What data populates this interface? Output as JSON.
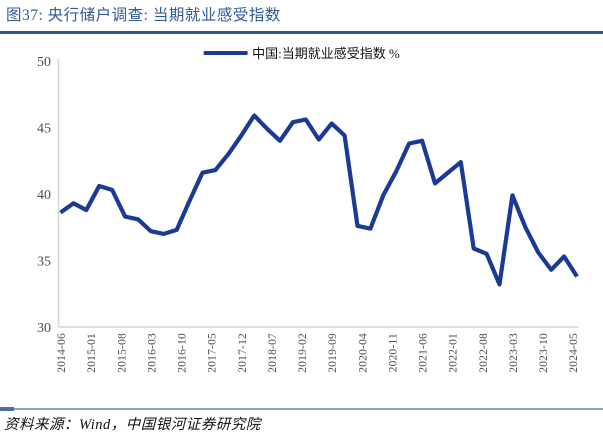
{
  "header": {
    "title": "图37:  央行储户调查:  当期就业感受指数",
    "accent_color": "#2E5A8F"
  },
  "legend": {
    "label": "中国:当期就业感受指数 %"
  },
  "footer": {
    "source": "资料来源：Wind，中国银河证券研究院"
  },
  "chart_data": {
    "type": "line",
    "title": "图37: 央行储户调查: 当期就业感受指数",
    "legend": "中国:当期就业感受指数 %",
    "line_color": "#1A3A94",
    "axis_color": "#D6D6D6",
    "tick_text_color": "#4D4D4D",
    "ylim": [
      30,
      50
    ],
    "y_ticks": [
      50,
      45,
      40,
      35,
      30
    ],
    "grid": "off",
    "legend_position": "top-center",
    "x_tick_labels": [
      "2014-06",
      "2015-01",
      "2015-08",
      "2016-03",
      "2016-10",
      "2017-05",
      "2017-12",
      "2018-07",
      "2019-02",
      "2019-09",
      "2020-04",
      "2020-11",
      "2021-06",
      "2022-01",
      "2022-08",
      "2023-03",
      "2023-10",
      "2024-05"
    ],
    "x_tick_month_step": 7,
    "x": [
      "2014-06",
      "2014-09",
      "2014-12",
      "2015-03",
      "2015-06",
      "2015-09",
      "2015-12",
      "2016-03",
      "2016-06",
      "2016-09",
      "2016-12",
      "2017-03",
      "2017-06",
      "2017-09",
      "2017-12",
      "2018-03",
      "2018-06",
      "2018-09",
      "2018-12",
      "2019-03",
      "2019-06",
      "2019-09",
      "2019-12",
      "2020-03",
      "2020-06",
      "2020-09",
      "2020-12",
      "2021-03",
      "2021-06",
      "2021-09",
      "2021-12",
      "2022-03",
      "2022-06",
      "2022-09",
      "2022-12",
      "2023-03",
      "2023-06",
      "2023-09",
      "2023-12",
      "2024-03",
      "2024-06"
    ],
    "values": [
      38.6,
      39.3,
      38.8,
      40.6,
      40.3,
      38.3,
      38.1,
      37.2,
      37.0,
      37.3,
      39.5,
      41.6,
      41.8,
      43.0,
      44.4,
      45.9,
      44.9,
      44.0,
      45.4,
      45.6,
      44.1,
      45.3,
      44.4,
      37.6,
      37.4,
      39.9,
      41.7,
      43.8,
      44.0,
      40.8,
      41.6,
      42.4,
      35.9,
      35.5,
      33.2,
      39.9,
      37.5,
      35.6,
      34.3,
      35.3,
      33.8
    ]
  }
}
